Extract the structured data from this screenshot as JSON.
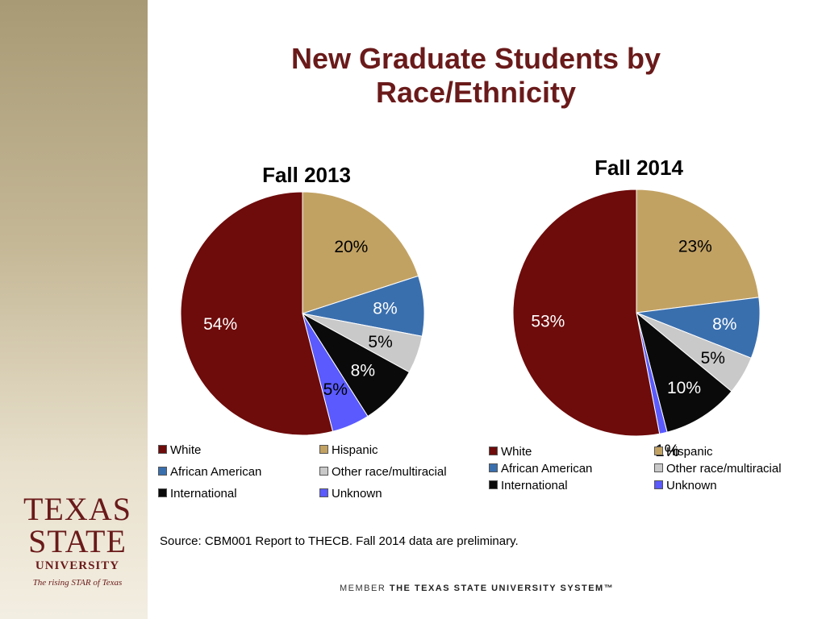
{
  "title": "New Graduate Students by Race/Ethnicity",
  "chart_data": [
    {
      "type": "pie",
      "title": "Fall 2013",
      "slices": [
        {
          "label": "Hispanic",
          "value": 20,
          "data_label": "20%",
          "color": "#c2a263"
        },
        {
          "label": "African American",
          "value": 8,
          "data_label": "8%",
          "color": "#3a6fae"
        },
        {
          "label": "Other race/multiracial",
          "value": 5,
          "data_label": "5%",
          "color": "#c9c9c9"
        },
        {
          "label": "International",
          "value": 8,
          "data_label": "8%",
          "color": "#0a0a0a"
        },
        {
          "label": "Unknown",
          "value": 5,
          "data_label": "5%",
          "color": "#5a5aff"
        },
        {
          "label": "White",
          "value": 54,
          "data_label": "54%",
          "color": "#6e0b0b"
        }
      ],
      "legend": [
        "White",
        "Hispanic",
        "African American",
        "Other race/multiracial",
        "International",
        "Unknown"
      ],
      "legend_position": "bottom"
    },
    {
      "type": "pie",
      "title": "Fall 2014",
      "slices": [
        {
          "label": "Hispanic",
          "value": 23,
          "data_label": "23%",
          "color": "#c2a263"
        },
        {
          "label": "African American",
          "value": 8,
          "data_label": "8%",
          "color": "#3a6fae"
        },
        {
          "label": "Other race/multiracial",
          "value": 5,
          "data_label": "5%",
          "color": "#c9c9c9"
        },
        {
          "label": "International",
          "value": 10,
          "data_label": "10%",
          "color": "#0a0a0a"
        },
        {
          "label": "Unknown",
          "value": 1,
          "data_label": "1%",
          "color": "#5a5aff"
        },
        {
          "label": "White",
          "value": 53,
          "data_label": "53%",
          "color": "#6e0b0b"
        }
      ],
      "legend": [
        "White",
        "Hispanic",
        "African American",
        "Other race/multiracial",
        "International",
        "Unknown"
      ],
      "legend_position": "bottom"
    }
  ],
  "source": "Source:  CBM001 Report to THECB. Fall 2014 data are preliminary.",
  "logo": {
    "line1": "TEXAS",
    "line2": "STATE",
    "line3": "UNIVERSITY",
    "tagline": "The rising STAR of Texas"
  },
  "footer": {
    "member": "MEMBER",
    "system": "THE TEXAS STATE UNIVERSITY SYSTEM™"
  }
}
